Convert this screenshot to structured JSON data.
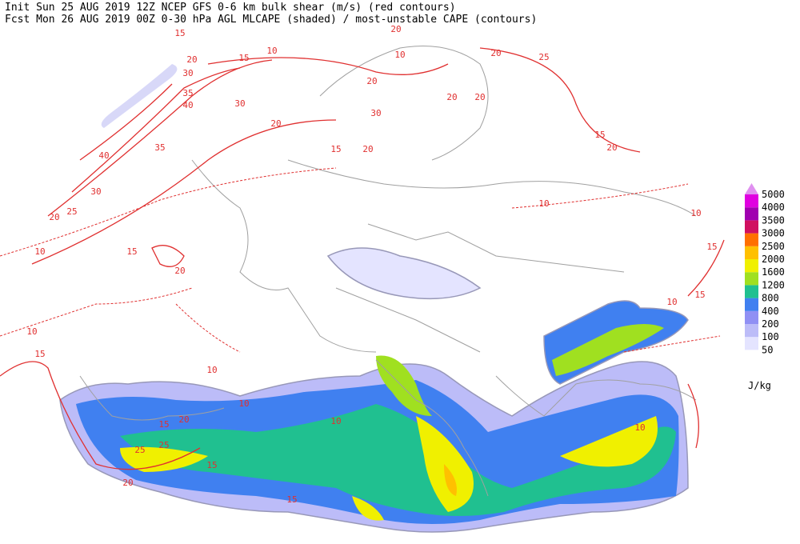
{
  "header": {
    "line1": "Init  Sun 25 AUG 2019 12Z  NCEP GFS 0-6 km bulk shear (m/s) (red contours)",
    "line2": "Fcst Mon 26 AUG 2019 00Z  0-30 hPa AGL MLCAPE (shaded) / most-unstable CAPE (contours)"
  },
  "legend": {
    "levels": [
      50,
      100,
      200,
      400,
      800,
      1200,
      1600,
      2000,
      2500,
      3000,
      3500,
      4000,
      5000
    ],
    "colors": [
      "#e4e4ff",
      "#bcbcf8",
      "#9090f4",
      "#4080f0",
      "#20c090",
      "#a0e020",
      "#f0f000",
      "#ffc000",
      "#ff7000",
      "#d01060",
      "#a000b0",
      "#e000e0"
    ],
    "extend_color": "#e090f0",
    "unit": "J/kg"
  },
  "contour_labels": [
    20,
    15,
    10,
    30,
    35,
    40,
    30,
    20,
    35,
    40,
    30,
    25,
    20,
    10,
    15,
    20,
    15,
    20,
    10,
    20,
    30,
    20,
    15,
    20,
    25,
    20,
    20,
    15,
    20,
    10,
    10,
    15,
    10,
    10,
    15,
    10,
    20,
    15,
    25,
    25,
    15,
    20,
    10,
    10,
    15,
    10,
    15
  ]
}
